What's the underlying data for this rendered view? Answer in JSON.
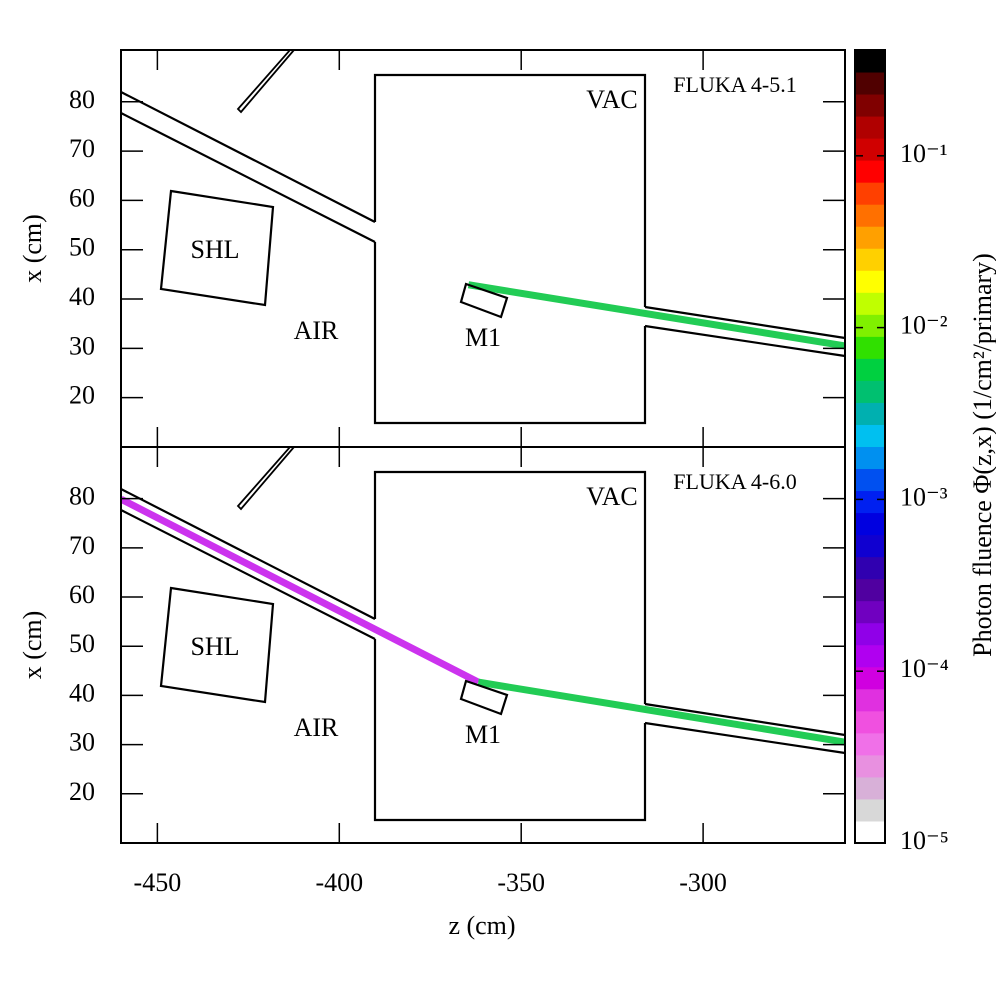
{
  "chart_data": {
    "type": "heatmap",
    "xlabel": "z (cm)",
    "xlim": [
      -460,
      -261
    ],
    "xticks": [
      -450,
      -400,
      -350,
      -300
    ],
    "panels": [
      {
        "label": "FLUKA 4-5.1",
        "ylabel": "x (cm)",
        "ylim": [
          10,
          90.5
        ],
        "yticks": [
          20,
          30,
          40,
          50,
          60,
          70,
          80
        ],
        "annotations": [
          "SHL",
          "AIR",
          "VAC",
          "M1"
        ],
        "tracks": [
          {
            "color": "#22cc55",
            "z": [
              -364.5,
              -261
            ],
            "x": [
              42.9,
              30.5
            ]
          }
        ]
      },
      {
        "label": "FLUKA 4-6.0",
        "ylabel": "x (cm)",
        "ylim": [
          10,
          90.5
        ],
        "yticks": [
          20,
          30,
          40,
          50,
          60,
          70,
          80
        ],
        "annotations": [
          "SHL",
          "AIR",
          "VAC",
          "M1"
        ],
        "tracks": [
          {
            "color": "#cc33ee",
            "z": [
              -460,
              -361.8
            ],
            "x": [
              79.9,
              42.7
            ]
          },
          {
            "color": "#22cc55",
            "z": [
              -361.8,
              -261
            ],
            "x": [
              42.7,
              30.5
            ]
          }
        ]
      }
    ],
    "colorbar": {
      "label": "Photon fluence  Φ(z,x)  (1/cm²/primary)",
      "log": true,
      "clim": [
        1e-05,
        0.413
      ],
      "ticks": [
        {
          "value": 1e-05,
          "label": "10⁻⁵"
        },
        {
          "value": 0.0001,
          "label": "10⁻⁴"
        },
        {
          "value": 0.001,
          "label": "10⁻³"
        },
        {
          "value": 0.01,
          "label": "10⁻²"
        },
        {
          "value": 0.1,
          "label": "10⁻¹"
        }
      ],
      "colors": [
        "#ffffff",
        "#d8d8d8",
        "#d8b0d8",
        "#e890e0",
        "#f070e8",
        "#f050e0",
        "#e030e0",
        "#d000e0",
        "#b000f0",
        "#9000e8",
        "#7000c0",
        "#5000a0",
        "#3000b0",
        "#1000d0",
        "#0000e0",
        "#0020f0",
        "#0050f0",
        "#0090f0",
        "#00c0f0",
        "#00b0b0",
        "#00c070",
        "#00d040",
        "#30e000",
        "#80f000",
        "#c0ff00",
        "#ffff00",
        "#ffd000",
        "#ffa000",
        "#ff7000",
        "#ff4000",
        "#ff0000",
        "#d00000",
        "#b00000",
        "#800000",
        "#500000",
        "#000000"
      ]
    }
  }
}
